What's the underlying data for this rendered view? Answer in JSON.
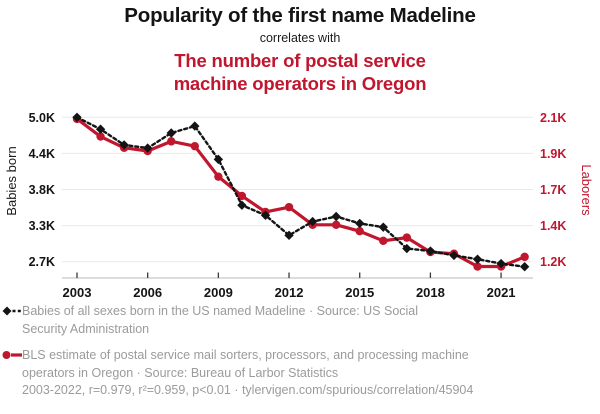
{
  "colors": {
    "accent_red": "#c0172f",
    "title_black": "#141414",
    "legend_gray": "#9b9b9b",
    "gridline": "#e9e9e9",
    "axis_line": "#c8c8c8"
  },
  "header": {
    "title": "Popularity of the first name Madeline",
    "connector": "correlates with",
    "subtitle_line1": "The number of postal service",
    "subtitle_line2": "machine operators in Oregon"
  },
  "chart_data": {
    "type": "line",
    "title": "Popularity of the first name Madeline correlates with The number of postal service machine operators in Oregon",
    "x": [
      2003,
      2004,
      2005,
      2006,
      2007,
      2008,
      2009,
      2010,
      2011,
      2012,
      2013,
      2014,
      2015,
      2016,
      2017,
      2018,
      2019,
      2020,
      2021,
      2022
    ],
    "series": [
      {
        "name": "Babies of all sexes born in the US named Madeline",
        "axis": "left",
        "style": "dashed",
        "marker": "diamond",
        "color": "#141414",
        "values": [
          5000,
          4810,
          4560,
          4510,
          4750,
          4860,
          4330,
          3600,
          3440,
          3120,
          3340,
          3420,
          3310,
          3250,
          2910,
          2870,
          2800,
          2740,
          2670,
          2620
        ]
      },
      {
        "name": "BLS estimate of postal service mail sorters, processors, and processing machine operators in Oregon",
        "axis": "right",
        "style": "solid",
        "marker": "circle",
        "color": "#c0172f",
        "values": [
          2090,
          1980,
          1910,
          1890,
          1950,
          1920,
          1730,
          1610,
          1510,
          1540,
          1430,
          1430,
          1390,
          1330,
          1350,
          1260,
          1250,
          1170,
          1170,
          1230
        ]
      }
    ],
    "left_axis": {
      "label": "Babies born",
      "range": [
        2700,
        5000
      ],
      "ticks": [
        5000,
        4425,
        3850,
        3275,
        2700
      ],
      "tick_labels": [
        "5.0K",
        "4.4K",
        "3.8K",
        "3.3K",
        "2.7K"
      ]
    },
    "right_axis": {
      "label": "Laborers",
      "range": [
        1200,
        2100
      ],
      "ticks": [
        2100,
        1875,
        1650,
        1425,
        1200
      ],
      "tick_labels": [
        "2.1K",
        "1.9K",
        "1.7K",
        "1.4K",
        "1.2K"
      ]
    },
    "x_axis": {
      "tick_years": [
        2003,
        2006,
        2009,
        2012,
        2015,
        2018,
        2021
      ]
    },
    "grid": "horizontal-only",
    "legend_position": "bottom"
  },
  "legend": {
    "entries": [
      {
        "line1": "Babies of all sexes born in the US named Madeline · Source: US Social",
        "line2": "Security Administration"
      },
      {
        "line1": "BLS estimate of postal service mail sorters, processors, and processing machine",
        "line2": "operators in Oregon · Source: Bureau of Larbor Statistics"
      }
    ],
    "footnote": "2003-2022, r=0.979, r²=0.959, p<0.01 · tylervigen.com/spurious/correlation/45904"
  }
}
